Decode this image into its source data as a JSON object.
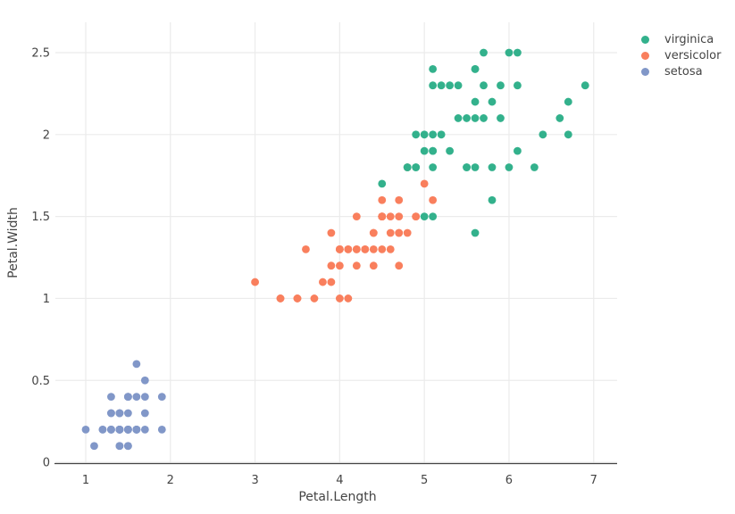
{
  "chart_data": {
    "type": "scatter",
    "title": "",
    "xlabel": "Petal.Length",
    "ylabel": "Petal.Width",
    "xlim": [
      0.673,
      7.277
    ],
    "ylim": [
      -0.005,
      2.685
    ],
    "x_ticks": [
      {
        "v": 1,
        "label": "1"
      },
      {
        "v": 2,
        "label": "2"
      },
      {
        "v": 3,
        "label": "3"
      },
      {
        "v": 4,
        "label": "4"
      },
      {
        "v": 5,
        "label": "5"
      },
      {
        "v": 6,
        "label": "6"
      },
      {
        "v": 7,
        "label": "7"
      }
    ],
    "y_ticks": [
      {
        "v": 0,
        "label": "0"
      },
      {
        "v": 0.5,
        "label": "0.5"
      },
      {
        "v": 1,
        "label": "1"
      },
      {
        "v": 1.5,
        "label": "1.5"
      },
      {
        "v": 2,
        "label": "2"
      },
      {
        "v": 2.5,
        "label": "2.5"
      }
    ],
    "grid": true,
    "legend_position": "top-right",
    "marker_radius_px": 4.4,
    "style": {
      "background": "#ffffff",
      "grid_color": "#ebebeb",
      "axis_line_color": "#444444",
      "text_color": "#444444"
    },
    "series": [
      {
        "name": "virginica",
        "color": "#33b18c",
        "points": [
          [
            6.0,
            2.5
          ],
          [
            5.1,
            1.9
          ],
          [
            5.9,
            2.1
          ],
          [
            5.6,
            1.8
          ],
          [
            5.8,
            2.2
          ],
          [
            6.6,
            2.1
          ],
          [
            4.5,
            1.7
          ],
          [
            6.3,
            1.8
          ],
          [
            5.8,
            1.8
          ],
          [
            6.1,
            2.5
          ],
          [
            5.1,
            2.0
          ],
          [
            5.3,
            1.9
          ],
          [
            5.5,
            2.1
          ],
          [
            5.0,
            2.0
          ],
          [
            5.1,
            2.4
          ],
          [
            5.3,
            2.3
          ],
          [
            5.5,
            1.8
          ],
          [
            6.7,
            2.2
          ],
          [
            6.9,
            2.3
          ],
          [
            5.0,
            1.5
          ],
          [
            5.7,
            2.3
          ],
          [
            4.9,
            2.0
          ],
          [
            6.7,
            2.0
          ],
          [
            4.9,
            1.8
          ],
          [
            5.7,
            2.1
          ],
          [
            6.0,
            1.8
          ],
          [
            4.8,
            1.8
          ],
          [
            4.9,
            1.8
          ],
          [
            5.6,
            2.1
          ],
          [
            5.8,
            1.6
          ],
          [
            6.1,
            1.9
          ],
          [
            6.4,
            2.0
          ],
          [
            5.6,
            2.2
          ],
          [
            5.1,
            1.5
          ],
          [
            5.6,
            1.4
          ],
          [
            6.1,
            2.3
          ],
          [
            5.6,
            2.4
          ],
          [
            5.5,
            1.8
          ],
          [
            4.8,
            1.8
          ],
          [
            5.4,
            2.1
          ],
          [
            5.6,
            2.4
          ],
          [
            5.1,
            2.3
          ],
          [
            5.1,
            1.9
          ],
          [
            5.9,
            2.3
          ],
          [
            5.7,
            2.5
          ],
          [
            5.2,
            2.3
          ],
          [
            5.0,
            1.9
          ],
          [
            5.2,
            2.0
          ],
          [
            5.4,
            2.3
          ],
          [
            5.1,
            1.8
          ]
        ]
      },
      {
        "name": "versicolor",
        "color": "#f97f5d",
        "points": [
          [
            4.7,
            1.4
          ],
          [
            4.5,
            1.5
          ],
          [
            4.9,
            1.5
          ],
          [
            4.0,
            1.3
          ],
          [
            4.6,
            1.5
          ],
          [
            4.5,
            1.3
          ],
          [
            4.7,
            1.6
          ],
          [
            3.3,
            1.0
          ],
          [
            4.6,
            1.3
          ],
          [
            3.9,
            1.4
          ],
          [
            3.5,
            1.0
          ],
          [
            4.2,
            1.5
          ],
          [
            4.0,
            1.0
          ],
          [
            4.7,
            1.4
          ],
          [
            3.6,
            1.3
          ],
          [
            4.4,
            1.4
          ],
          [
            4.5,
            1.5
          ],
          [
            4.1,
            1.0
          ],
          [
            4.5,
            1.5
          ],
          [
            3.9,
            1.1
          ],
          [
            4.8,
            1.8
          ],
          [
            4.0,
            1.3
          ],
          [
            4.9,
            1.5
          ],
          [
            4.7,
            1.2
          ],
          [
            4.3,
            1.3
          ],
          [
            4.4,
            1.4
          ],
          [
            4.8,
            1.4
          ],
          [
            5.0,
            1.7
          ],
          [
            4.5,
            1.5
          ],
          [
            3.5,
            1.0
          ],
          [
            3.8,
            1.1
          ],
          [
            3.7,
            1.0
          ],
          [
            3.9,
            1.2
          ],
          [
            5.1,
            1.6
          ],
          [
            4.5,
            1.5
          ],
          [
            4.5,
            1.6
          ],
          [
            4.7,
            1.5
          ],
          [
            4.4,
            1.3
          ],
          [
            4.1,
            1.3
          ],
          [
            4.0,
            1.3
          ],
          [
            4.4,
            1.2
          ],
          [
            4.6,
            1.4
          ],
          [
            4.0,
            1.2
          ],
          [
            3.3,
            1.0
          ],
          [
            4.2,
            1.3
          ],
          [
            4.2,
            1.2
          ],
          [
            4.2,
            1.3
          ],
          [
            4.3,
            1.3
          ],
          [
            3.0,
            1.1
          ],
          [
            4.1,
            1.3
          ]
        ]
      },
      {
        "name": "setosa",
        "color": "#8197c8",
        "points": [
          [
            1.4,
            0.2
          ],
          [
            1.4,
            0.2
          ],
          [
            1.3,
            0.2
          ],
          [
            1.5,
            0.2
          ],
          [
            1.4,
            0.2
          ],
          [
            1.7,
            0.4
          ],
          [
            1.4,
            0.3
          ],
          [
            1.5,
            0.2
          ],
          [
            1.4,
            0.2
          ],
          [
            1.5,
            0.1
          ],
          [
            1.5,
            0.2
          ],
          [
            1.6,
            0.2
          ],
          [
            1.4,
            0.1
          ],
          [
            1.1,
            0.1
          ],
          [
            1.2,
            0.2
          ],
          [
            1.5,
            0.4
          ],
          [
            1.3,
            0.4
          ],
          [
            1.4,
            0.3
          ],
          [
            1.7,
            0.3
          ],
          [
            1.5,
            0.3
          ],
          [
            1.7,
            0.2
          ],
          [
            1.5,
            0.4
          ],
          [
            1.0,
            0.2
          ],
          [
            1.7,
            0.5
          ],
          [
            1.9,
            0.2
          ],
          [
            1.6,
            0.2
          ],
          [
            1.6,
            0.4
          ],
          [
            1.5,
            0.2
          ],
          [
            1.4,
            0.2
          ],
          [
            1.6,
            0.2
          ],
          [
            1.6,
            0.2
          ],
          [
            1.5,
            0.4
          ],
          [
            1.5,
            0.1
          ],
          [
            1.4,
            0.2
          ],
          [
            1.5,
            0.2
          ],
          [
            1.2,
            0.2
          ],
          [
            1.3,
            0.2
          ],
          [
            1.4,
            0.1
          ],
          [
            1.3,
            0.2
          ],
          [
            1.5,
            0.2
          ],
          [
            1.3,
            0.3
          ],
          [
            1.3,
            0.3
          ],
          [
            1.3,
            0.2
          ],
          [
            1.6,
            0.6
          ],
          [
            1.9,
            0.4
          ],
          [
            1.4,
            0.3
          ],
          [
            1.6,
            0.2
          ],
          [
            1.4,
            0.2
          ],
          [
            1.5,
            0.2
          ],
          [
            1.4,
            0.2
          ]
        ]
      }
    ],
    "legend_labels": [
      "virginica",
      "versicolor",
      "setosa"
    ]
  }
}
